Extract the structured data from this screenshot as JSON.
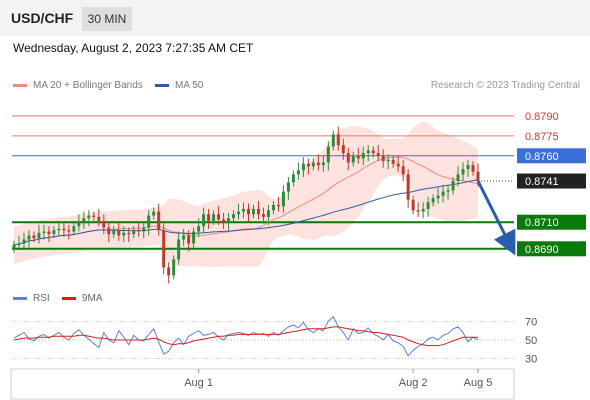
{
  "header": {
    "symbol": "USD/CHF",
    "timeframe": "30 MIN"
  },
  "datetime": "Wednesday, August 2, 2023 7:27:35 AM CET",
  "legend": {
    "ma20": {
      "label": "MA 20 + Bollinger Bands",
      "color": "#f08a7e"
    },
    "ma50": {
      "label": "MA 50",
      "color": "#2f5aa8"
    }
  },
  "source": "Research © 2023 Trading Central",
  "chart_data": {
    "type": "candlestick",
    "symbol": "USD/CHF",
    "timeframe": "30 MIN",
    "ylim": [
      0.8665,
      0.8805
    ],
    "x_tick_labels": [
      {
        "label": "Aug 1",
        "index": 37
      },
      {
        "label": "Aug 2",
        "index": 80
      },
      {
        "label": "Aug 5",
        "index": 93
      }
    ],
    "levels": [
      {
        "label": "0.8790",
        "value": 0.879,
        "kind": "resistance"
      },
      {
        "label": "0.8775",
        "value": 0.8775,
        "kind": "resistance"
      },
      {
        "label": "0.8760",
        "value": 0.876,
        "kind": "pivot"
      },
      {
        "label": "0.8741",
        "value": 0.8741,
        "kind": "last"
      },
      {
        "label": "0.8710",
        "value": 0.871,
        "kind": "support"
      },
      {
        "label": "0.8690",
        "value": 0.869,
        "kind": "support"
      }
    ],
    "level_colors": {
      "resistance": "#e8776e",
      "pivot": "#3a6fd8",
      "support": "#0a7a0a",
      "last": "#333333"
    },
    "closes": [
      0.8693,
      0.8694,
      0.8697,
      0.87,
      0.8698,
      0.8702,
      0.8703,
      0.8701,
      0.8704,
      0.8705,
      0.8704,
      0.8703,
      0.8707,
      0.871,
      0.8713,
      0.8715,
      0.8714,
      0.8711,
      0.8706,
      0.8701,
      0.8704,
      0.87,
      0.8702,
      0.8701,
      0.8704,
      0.8703,
      0.8706,
      0.8715,
      0.8718,
      0.8704,
      0.8676,
      0.867,
      0.8682,
      0.8697,
      0.87,
      0.8694,
      0.8703,
      0.8707,
      0.8716,
      0.8711,
      0.8716,
      0.8712,
      0.871,
      0.8713,
      0.8716,
      0.8718,
      0.872,
      0.8716,
      0.872,
      0.8716,
      0.8714,
      0.8719,
      0.8723,
      0.8722,
      0.8733,
      0.874,
      0.8746,
      0.8749,
      0.8754,
      0.8752,
      0.8755,
      0.8753,
      0.8755,
      0.8767,
      0.8776,
      0.8768,
      0.8762,
      0.8755,
      0.876,
      0.8758,
      0.8762,
      0.8764,
      0.8762,
      0.876,
      0.8756,
      0.8757,
      0.8754,
      0.8752,
      0.8746,
      0.8727,
      0.8719,
      0.8718,
      0.872,
      0.8725,
      0.8728,
      0.873,
      0.8733,
      0.8734,
      0.8741,
      0.8746,
      0.875,
      0.8753,
      0.8748,
      0.8741
    ],
    "forecast_arrow": {
      "from": 0.8741,
      "to": 0.869
    },
    "rsi": {
      "ticks": [
        70,
        50,
        30
      ],
      "ylim": [
        20,
        80
      ],
      "series": [
        {
          "name": "RSI",
          "color": "#5b7fd6",
          "values": [
            52,
            55,
            58,
            51,
            49,
            54,
            56,
            52,
            55,
            58,
            53,
            50,
            57,
            61,
            55,
            51,
            46,
            42,
            58,
            50,
            47,
            60,
            53,
            45,
            55,
            50,
            49,
            56,
            62,
            48,
            35,
            38,
            47,
            52,
            45,
            54,
            57,
            60,
            55,
            56,
            58,
            53,
            50,
            56,
            57,
            58,
            57,
            55,
            58,
            56,
            57,
            54,
            58,
            55,
            60,
            64,
            66,
            63,
            69,
            61,
            58,
            62,
            60,
            70,
            75,
            64,
            58,
            50,
            62,
            57,
            58,
            63,
            57,
            54,
            50,
            56,
            49,
            47,
            43,
            33,
            39,
            43,
            46,
            51,
            53,
            50,
            55,
            57,
            62,
            64,
            58,
            48,
            53,
            50
          ]
        },
        {
          "name": "9MA",
          "color": "#d22020",
          "values": [
            50,
            51,
            52,
            52,
            52,
            53,
            53,
            53,
            54,
            54,
            54,
            54,
            54,
            55,
            55,
            54,
            53,
            52,
            52,
            51,
            50,
            50,
            50,
            50,
            50,
            50,
            50,
            51,
            52,
            51,
            48,
            46,
            45,
            46,
            46,
            47,
            49,
            50,
            51,
            52,
            53,
            54,
            54,
            55,
            55,
            56,
            56,
            56,
            56,
            56,
            56,
            56,
            56,
            56,
            57,
            58,
            59,
            60,
            61,
            62,
            62,
            62,
            62,
            63,
            64,
            64,
            63,
            62,
            61,
            60,
            60,
            59,
            58,
            58,
            57,
            56,
            55,
            54,
            53,
            50,
            48,
            46,
            45,
            44,
            44,
            44,
            45,
            47,
            49,
            51,
            53,
            53,
            53,
            53
          ]
        }
      ]
    }
  },
  "rsi_legend": {
    "rsi": {
      "label": "RSI",
      "color": "#5b7fd6"
    },
    "ma9": {
      "label": "9MA",
      "color": "#d22020"
    }
  }
}
